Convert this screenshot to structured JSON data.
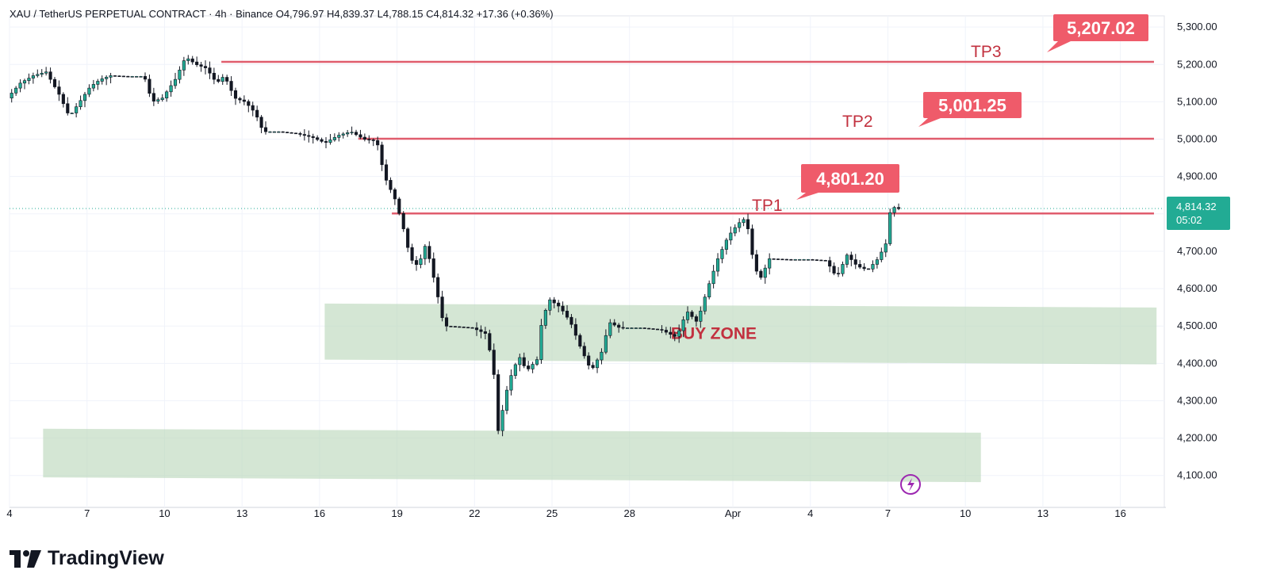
{
  "header": {
    "text": "XAU / TetherUS PERPETUAL CONTRACT · 4h · Binance  O4,796.97  H4,839.37  L4,788.15  C4,814.32  +17.36 (+0.36%)"
  },
  "branding": {
    "logo_text": "TradingView"
  },
  "price_badge": {
    "price": "4,814.32",
    "countdown": "05:02",
    "color": "#22ab94"
  },
  "chart_data": {
    "type": "candlestick",
    "symbol": "XAU / TetherUS PERPETUAL CONTRACT",
    "interval": "4h",
    "exchange": "Binance",
    "ohlc": {
      "open": 4796.97,
      "high": 4839.37,
      "low": 4788.15,
      "close": 4814.32,
      "change": 17.36,
      "change_pct": 0.36
    },
    "ylim": [
      4040,
      5330
    ],
    "y_ticks": [
      "5,300.00",
      "5,200.00",
      "5,100.00",
      "5,000.00",
      "4,900.00",
      "4,800.00",
      "4,700.00",
      "4,600.00",
      "4,500.00",
      "4,400.00",
      "4,300.00",
      "4,200.00",
      "4,100.00"
    ],
    "x_tick_labels": [
      "4",
      "7",
      "10",
      "13",
      "16",
      "19",
      "22",
      "25",
      "28",
      "Apr",
      "4",
      "7",
      "10",
      "13",
      "16"
    ],
    "x_tick_days": [
      4,
      7,
      10,
      13,
      16,
      19,
      22,
      25,
      28,
      32,
      35,
      38,
      41,
      44,
      47
    ],
    "xlim": [
      4,
      48.7
    ],
    "grid": true,
    "levels": [
      {
        "name": "TP3",
        "price": 5207.02,
        "label": "5,207.02",
        "from_day": 12.2,
        "to_day": 48.3
      },
      {
        "name": "TP2",
        "price": 5001.25,
        "label": "5,001.25",
        "from_day": 17.5,
        "to_day": 48.3
      },
      {
        "name": "TP1",
        "price": 4801.2,
        "label": "4,801.20",
        "from_day": 18.8,
        "to_day": 48.3
      }
    ],
    "zones": [
      {
        "label": "BUY ZONE",
        "price_from": 4410,
        "price_to": 4560,
        "from_day": 16.2,
        "to_day": 48.4
      },
      {
        "label": "",
        "price_from": 4095,
        "price_to": 4225,
        "from_day": 5.3,
        "to_day": 41.6
      }
    ],
    "price_path": [
      [
        4.0,
        5110
      ],
      [
        4.5,
        5150
      ],
      [
        5.0,
        5170
      ],
      [
        5.5,
        5180
      ],
      [
        6.0,
        5120
      ],
      [
        6.4,
        5060
      ],
      [
        6.8,
        5100
      ],
      [
        7.2,
        5140
      ],
      [
        7.6,
        5160
      ],
      [
        8.0,
        5170
      ],
      [
        8.6,
        5168
      ],
      [
        9.3,
        5168
      ],
      [
        9.6,
        5100
      ],
      [
        10.0,
        5110
      ],
      [
        10.5,
        5160
      ],
      [
        10.9,
        5220
      ],
      [
        11.3,
        5200
      ],
      [
        11.7,
        5190
      ],
      [
        12.1,
        5150
      ],
      [
        12.4,
        5170
      ],
      [
        12.8,
        5110
      ],
      [
        13.2,
        5100
      ],
      [
        13.6,
        5070
      ],
      [
        13.9,
        5020
      ],
      [
        14.5,
        5020
      ],
      [
        15.2,
        5015
      ],
      [
        15.8,
        5005
      ],
      [
        16.3,
        4990
      ],
      [
        16.8,
        5010
      ],
      [
        17.3,
        5020
      ],
      [
        17.8,
        5000
      ],
      [
        18.3,
        4995
      ],
      [
        18.6,
        4900
      ],
      [
        19.0,
        4840
      ],
      [
        19.3,
        4770
      ],
      [
        19.6,
        4680
      ],
      [
        19.9,
        4660
      ],
      [
        20.2,
        4720
      ],
      [
        20.6,
        4600
      ],
      [
        20.9,
        4500
      ],
      [
        21.4,
        4498
      ],
      [
        22.0,
        4495
      ],
      [
        22.5,
        4480
      ],
      [
        22.8,
        4400
      ],
      [
        23.0,
        4220
      ],
      [
        23.4,
        4350
      ],
      [
        23.8,
        4420
      ],
      [
        24.1,
        4380
      ],
      [
        24.5,
        4410
      ],
      [
        24.7,
        4520
      ],
      [
        25.0,
        4570
      ],
      [
        25.4,
        4550
      ],
      [
        25.8,
        4510
      ],
      [
        26.2,
        4440
      ],
      [
        26.6,
        4380
      ],
      [
        27.0,
        4430
      ],
      [
        27.3,
        4510
      ],
      [
        27.7,
        4495
      ],
      [
        28.5,
        4495
      ],
      [
        29.3,
        4490
      ],
      [
        29.9,
        4470
      ],
      [
        30.3,
        4540
      ],
      [
        30.7,
        4510
      ],
      [
        31.1,
        4600
      ],
      [
        31.5,
        4680
      ],
      [
        31.9,
        4740
      ],
      [
        32.3,
        4775
      ],
      [
        32.6,
        4790
      ],
      [
        32.8,
        4700
      ],
      [
        33.1,
        4620
      ],
      [
        33.5,
        4680
      ],
      [
        34.2,
        4678
      ],
      [
        35.0,
        4678
      ],
      [
        35.7,
        4675
      ],
      [
        36.1,
        4630
      ],
      [
        36.5,
        4690
      ],
      [
        36.9,
        4660
      ],
      [
        37.3,
        4650
      ],
      [
        37.7,
        4680
      ],
      [
        38.0,
        4720
      ],
      [
        38.2,
        4820
      ],
      [
        38.5,
        4814
      ]
    ]
  }
}
